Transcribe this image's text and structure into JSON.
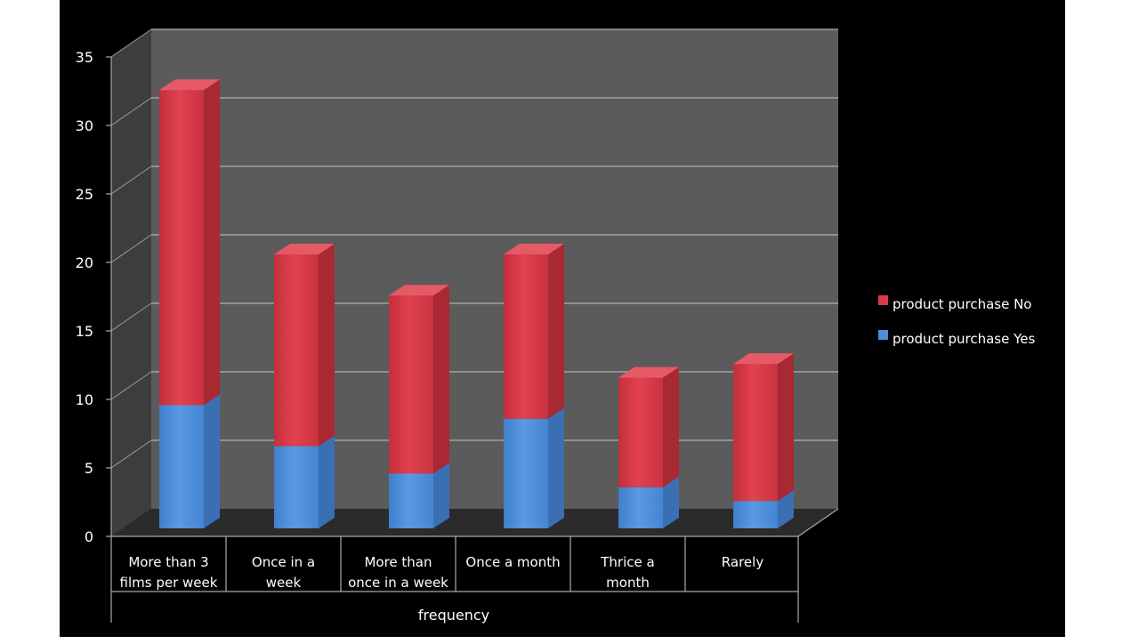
{
  "chart_data": {
    "type": "bar",
    "stacked": true,
    "three_d": true,
    "categories": [
      [
        "More than 3",
        "films per week"
      ],
      [
        "Once in a",
        "week"
      ],
      [
        "More than",
        "once in a week"
      ],
      [
        "Once a month"
      ],
      [
        "Thrice a",
        "month"
      ],
      [
        "Rarely"
      ]
    ],
    "series": [
      {
        "name": "product purchase Yes",
        "values": [
          9,
          6,
          4,
          8,
          3,
          2
        ]
      },
      {
        "name": "product purchase No",
        "values": [
          23,
          14,
          13,
          12,
          8,
          10
        ]
      }
    ],
    "legend": [
      "product purchase No",
      "product purchase Yes"
    ],
    "legend_placement": "right",
    "xlabel": "frequency",
    "ylabel": "",
    "title": "",
    "ylim": [
      0,
      35
    ],
    "yticks": [
      "0",
      "5",
      "10",
      "15",
      "20",
      "25",
      "30",
      "35"
    ],
    "grid": true,
    "colors": {
      "yes": "#4f8fd8",
      "no": "#d93a48",
      "background": "#000000",
      "wall": "#5b5b5b",
      "text": "#ffffff"
    }
  }
}
